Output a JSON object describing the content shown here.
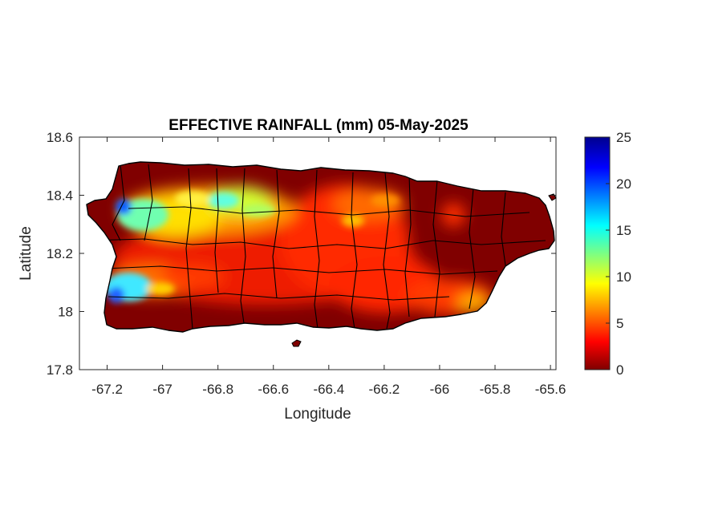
{
  "map": {
    "title": "EFFECTIVE RAINFALL (mm) 05-May-2025",
    "xlabel": "Longitude",
    "ylabel": "Latitude",
    "xlim": [
      -67.3,
      -65.58
    ],
    "ylim": [
      17.8,
      18.6
    ],
    "xticks": [
      -67.2,
      -67,
      -66.8,
      -66.6,
      -66.4,
      -66.2,
      -66,
      -65.8,
      -65.6
    ],
    "yticks": [
      17.8,
      18,
      18.2,
      18.4,
      18.6
    ],
    "region": "Puerto Rico",
    "colormap": "jet",
    "colorbar": {
      "min": 0,
      "max": 25,
      "ticks": [
        0,
        5,
        10,
        15,
        20,
        25
      ]
    },
    "colors": {
      "land_base": "#800000",
      "border": "#000000",
      "frame": "#262626"
    }
  }
}
